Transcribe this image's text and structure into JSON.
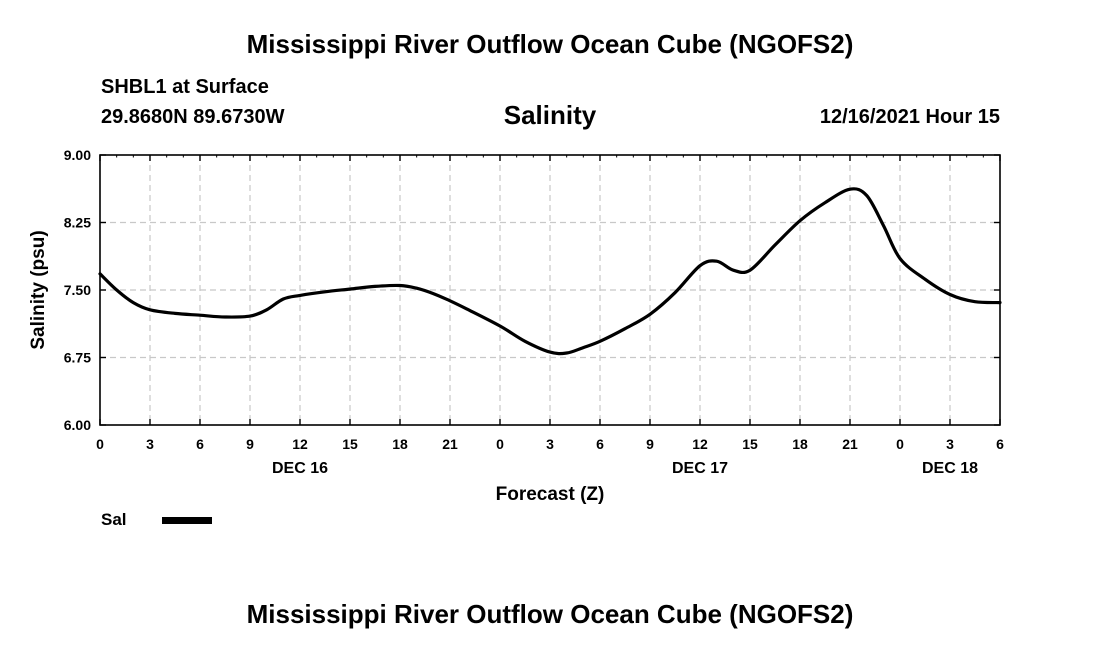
{
  "page": {
    "title": "Mississippi River Outflow Ocean Cube (NGOFS2)",
    "station": "SHBL1 at Surface",
    "coords": "29.8680N  89.6730W",
    "variable": "Salinity",
    "timestamp": "12/16/2021 Hour 15",
    "footer_title": "Mississippi River Outflow Ocean Cube (NGOFS2)"
  },
  "legend": {
    "label": "Sal"
  },
  "chart_data": {
    "type": "line",
    "title": "Salinity",
    "xlabel": "Forecast (Z)",
    "ylabel": "Salinity (psu)",
    "ylim": [
      6.0,
      9.0
    ],
    "yticks": [
      "6.00",
      "6.75",
      "7.50",
      "8.25",
      "9.00"
    ],
    "xlim": [
      0,
      54
    ],
    "xtick_values": [
      0,
      3,
      6,
      9,
      12,
      15,
      18,
      21,
      24,
      27,
      30,
      33,
      36,
      39,
      42,
      45,
      48,
      51,
      54
    ],
    "xtick_labels": [
      "0",
      "3",
      "6",
      "9",
      "12",
      "15",
      "18",
      "21",
      "0",
      "3",
      "6",
      "9",
      "12",
      "15",
      "18",
      "21",
      "0",
      "3",
      "6"
    ],
    "date_labels": [
      {
        "x": 12,
        "text": "DEC 16"
      },
      {
        "x": 36,
        "text": "DEC 17"
      },
      {
        "x": 51,
        "text": "DEC 18"
      }
    ],
    "grid": true,
    "series": [
      {
        "name": "Sal",
        "color": "#000000",
        "x": [
          0,
          1,
          2,
          3,
          4.5,
          6,
          7.5,
          9,
          10,
          11,
          12,
          13.5,
          15,
          16.5,
          18,
          19,
          20,
          21,
          22,
          24,
          25.5,
          27,
          28,
          29,
          30,
          31.5,
          33,
          34.5,
          36,
          37,
          38,
          39,
          40.5,
          42,
          43.5,
          45,
          46,
          47,
          48,
          49.5,
          51,
          52.5,
          54
        ],
        "y": [
          7.68,
          7.5,
          7.36,
          7.28,
          7.24,
          7.22,
          7.2,
          7.21,
          7.28,
          7.4,
          7.44,
          7.48,
          7.51,
          7.54,
          7.55,
          7.52,
          7.46,
          7.38,
          7.29,
          7.1,
          6.93,
          6.81,
          6.8,
          6.86,
          6.93,
          7.07,
          7.23,
          7.47,
          7.77,
          7.82,
          7.72,
          7.72,
          8.0,
          8.27,
          8.47,
          8.62,
          8.55,
          8.22,
          7.85,
          7.62,
          7.45,
          7.37,
          7.36
        ]
      }
    ]
  }
}
